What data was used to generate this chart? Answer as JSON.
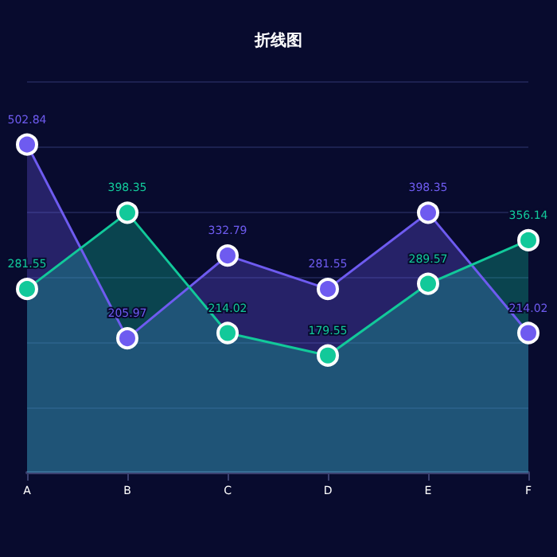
{
  "chart_data": {
    "type": "area",
    "title": "折线图",
    "categories": [
      "A",
      "B",
      "C",
      "D",
      "E",
      "F"
    ],
    "series": [
      {
        "color": "#6e5bf0",
        "values": [
          502.84,
          205.97,
          332.79,
          281.55,
          398.35,
          214.02
        ]
      },
      {
        "color": "#12c99a",
        "values": [
          281.55,
          398.35,
          214.02,
          179.55,
          289.57,
          356.14
        ]
      }
    ],
    "ylim": [
      0,
      600
    ],
    "yticks": [
      {
        "value": 0,
        "label": null
      },
      {
        "value": 100,
        "label": null
      },
      {
        "value": 200,
        "label": null
      },
      {
        "value": 300,
        "label": null
      },
      {
        "value": 400,
        "label": null
      },
      {
        "value": 500,
        "label": null
      },
      {
        "value": 600,
        "label": null
      }
    ],
    "grid": "y",
    "tick_labels": "x",
    "data_labels": true,
    "marker": "circle"
  }
}
